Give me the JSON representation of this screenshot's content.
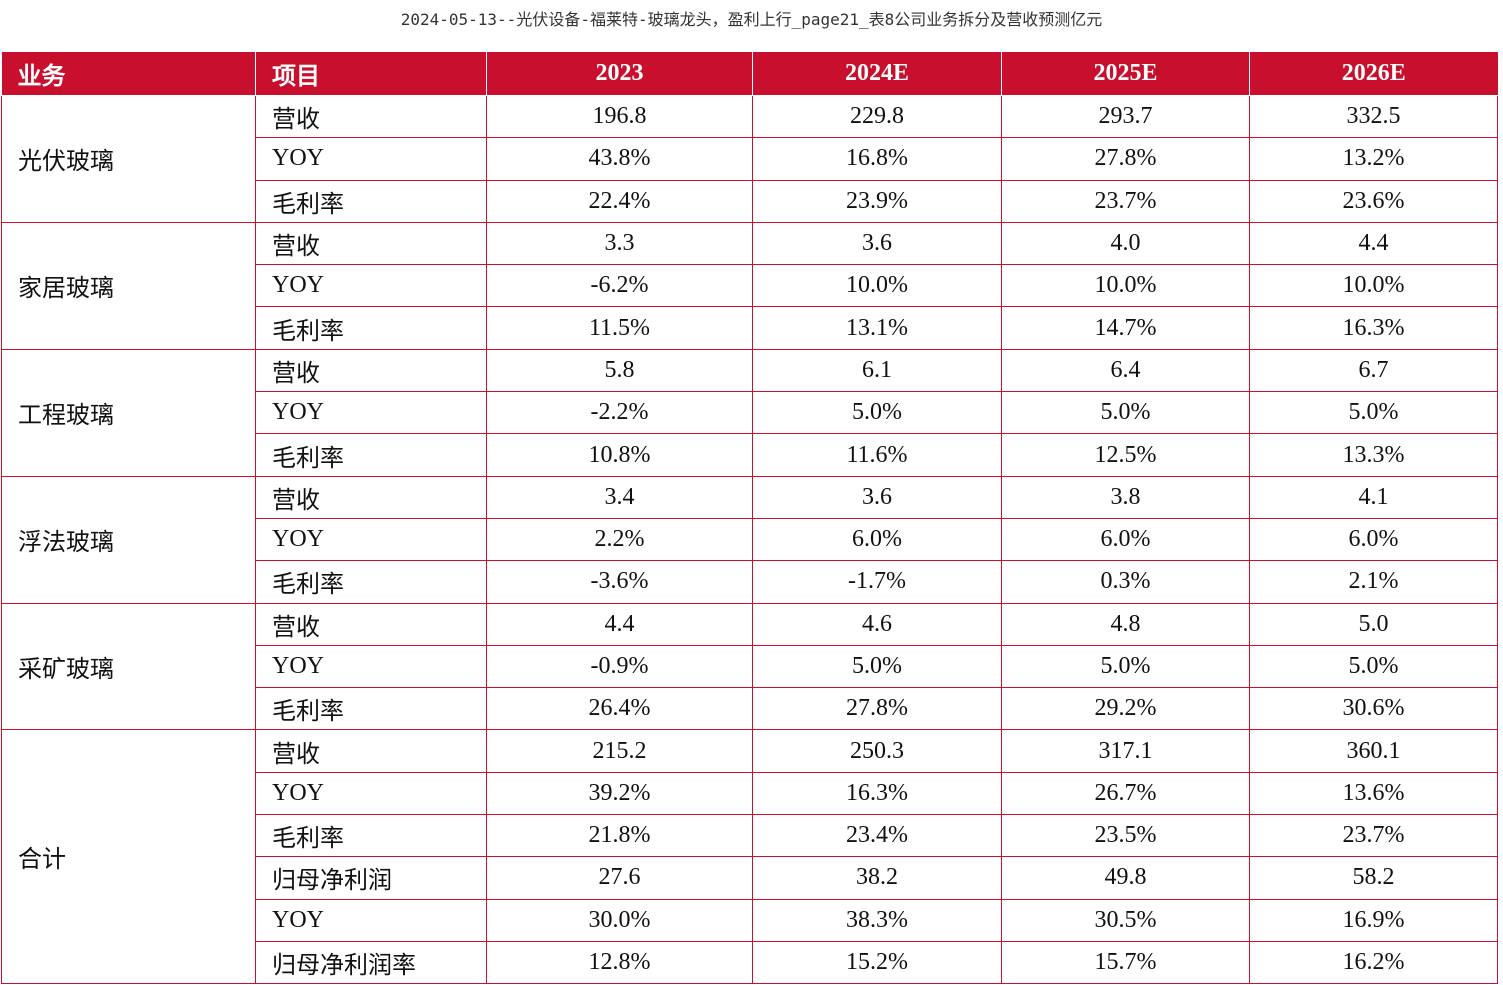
{
  "page_title": "2024-05-13--光伏设备-福莱特-玻璃龙头，盈利上行_page21_表8公司业务拆分及营收预测亿元",
  "colors": {
    "header_bg": "#c8102e",
    "header_text": "#ffffff",
    "grid_line": "#c8102e"
  },
  "table": {
    "headers": [
      "业务",
      "项目",
      "2023",
      "2024E",
      "2025E",
      "2026E"
    ],
    "groups": [
      {
        "business": "光伏玻璃",
        "rows": [
          {
            "item": "营收",
            "values": [
              "196.8",
              "229.8",
              "293.7",
              "332.5"
            ]
          },
          {
            "item": "YOY",
            "values": [
              "43.8%",
              "16.8%",
              "27.8%",
              "13.2%"
            ]
          },
          {
            "item": "毛利率",
            "values": [
              "22.4%",
              "23.9%",
              "23.7%",
              "23.6%"
            ]
          }
        ]
      },
      {
        "business": "家居玻璃",
        "rows": [
          {
            "item": "营收",
            "values": [
              "3.3",
              "3.6",
              "4.0",
              "4.4"
            ]
          },
          {
            "item": "YOY",
            "values": [
              "-6.2%",
              "10.0%",
              "10.0%",
              "10.0%"
            ]
          },
          {
            "item": "毛利率",
            "values": [
              "11.5%",
              "13.1%",
              "14.7%",
              "16.3%"
            ]
          }
        ]
      },
      {
        "business": "工程玻璃",
        "rows": [
          {
            "item": "营收",
            "values": [
              "5.8",
              "6.1",
              "6.4",
              "6.7"
            ]
          },
          {
            "item": "YOY",
            "values": [
              "-2.2%",
              "5.0%",
              "5.0%",
              "5.0%"
            ]
          },
          {
            "item": "毛利率",
            "values": [
              "10.8%",
              "11.6%",
              "12.5%",
              "13.3%"
            ]
          }
        ]
      },
      {
        "business": "浮法玻璃",
        "rows": [
          {
            "item": "营收",
            "values": [
              "3.4",
              "3.6",
              "3.8",
              "4.1"
            ]
          },
          {
            "item": "YOY",
            "values": [
              "2.2%",
              "6.0%",
              "6.0%",
              "6.0%"
            ]
          },
          {
            "item": "毛利率",
            "values": [
              "-3.6%",
              "-1.7%",
              "0.3%",
              "2.1%"
            ]
          }
        ]
      },
      {
        "business": "采矿玻璃",
        "rows": [
          {
            "item": "营收",
            "values": [
              "4.4",
              "4.6",
              "4.8",
              "5.0"
            ]
          },
          {
            "item": "YOY",
            "values": [
              "-0.9%",
              "5.0%",
              "5.0%",
              "5.0%"
            ]
          },
          {
            "item": "毛利率",
            "values": [
              "26.4%",
              "27.8%",
              "29.2%",
              "30.6%"
            ]
          }
        ]
      },
      {
        "business": "合计",
        "rows": [
          {
            "item": "营收",
            "values": [
              "215.2",
              "250.3",
              "317.1",
              "360.1"
            ]
          },
          {
            "item": "YOY",
            "values": [
              "39.2%",
              "16.3%",
              "26.7%",
              "13.6%"
            ]
          },
          {
            "item": "毛利率",
            "values": [
              "21.8%",
              "23.4%",
              "23.5%",
              "23.7%"
            ]
          },
          {
            "item": "归母净利润",
            "values": [
              "27.6",
              "38.2",
              "49.8",
              "58.2"
            ]
          },
          {
            "item": "YOY",
            "values": [
              "30.0%",
              "38.3%",
              "30.5%",
              "16.9%"
            ]
          },
          {
            "item": "归母净利润率",
            "values": [
              "12.8%",
              "15.2%",
              "15.7%",
              "16.2%"
            ]
          }
        ]
      }
    ]
  }
}
